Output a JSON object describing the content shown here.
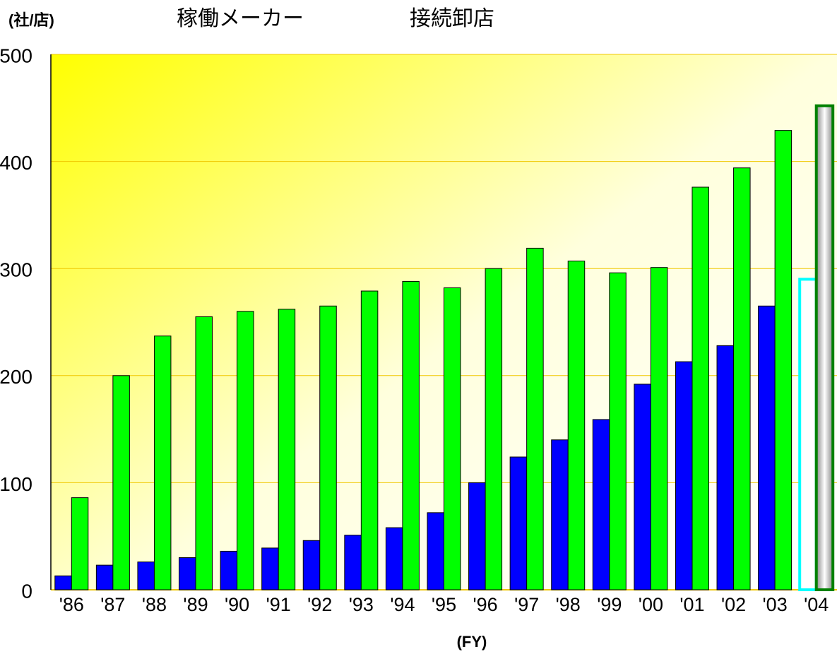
{
  "chart_data": {
    "type": "bar",
    "y_label": "(社/店)",
    "x_label": "(FY)",
    "categories": [
      "'86",
      "'87",
      "'88",
      "'89",
      "'90",
      "'91",
      "'92",
      "'93",
      "'94",
      "'95",
      "'96",
      "'97",
      "'98",
      "'99",
      "'00",
      "'01",
      "'02",
      "'03",
      "'04"
    ],
    "series": [
      {
        "name": "稼働メーカー",
        "color": "#0000ff",
        "last_color": "#00ffff",
        "values": [
          13,
          23,
          26,
          30,
          36,
          39,
          46,
          51,
          58,
          72,
          100,
          124,
          140,
          159,
          192,
          213,
          228,
          265,
          290
        ]
      },
      {
        "name": "接続卸店",
        "color": "#00ff00",
        "last_color": "#008000",
        "values": [
          86,
          200,
          237,
          255,
          260,
          262,
          265,
          279,
          288,
          282,
          300,
          319,
          307,
          296,
          301,
          376,
          394,
          429,
          452
        ]
      }
    ],
    "ylim": [
      0,
      500
    ],
    "yticks": [
      0,
      100,
      200,
      300,
      400,
      500
    ],
    "grid": true
  }
}
